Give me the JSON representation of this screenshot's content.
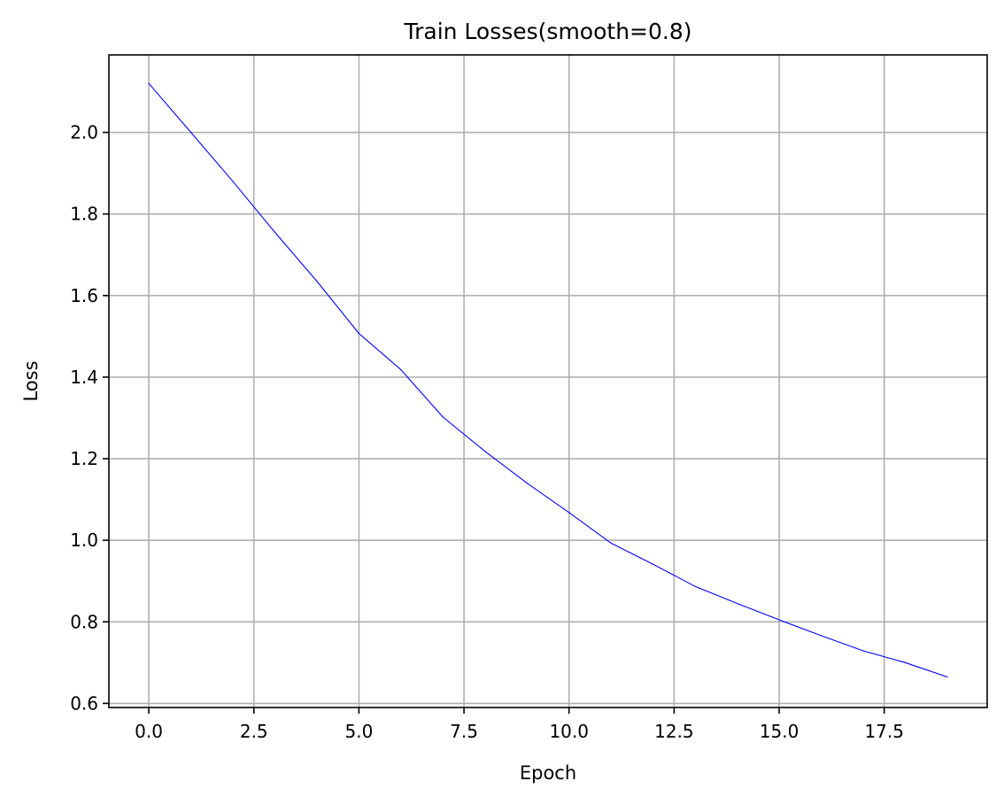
{
  "chart_data": {
    "type": "line",
    "title": "Train Losses(smooth=0.8)",
    "xlabel": "Epoch",
    "ylabel": "Loss",
    "xlim": [
      -0.95,
      19.95
    ],
    "ylim": [
      0.59,
      2.19
    ],
    "xticks": [
      0.0,
      2.5,
      5.0,
      7.5,
      10.0,
      12.5,
      15.0,
      17.5
    ],
    "xtick_labels": [
      "0.0",
      "2.5",
      "5.0",
      "7.5",
      "10.0",
      "12.5",
      "15.0",
      "17.5"
    ],
    "yticks": [
      0.6,
      0.8,
      1.0,
      1.2,
      1.4,
      1.6,
      1.8,
      2.0
    ],
    "ytick_labels": [
      "0.6",
      "0.8",
      "1.0",
      "1.2",
      "1.4",
      "1.6",
      "1.8",
      "2.0"
    ],
    "grid": true,
    "series": [
      {
        "color": "#0000ff",
        "x": [
          0,
          1,
          2,
          3,
          4,
          5,
          6,
          7,
          8,
          9,
          10,
          11,
          12,
          13,
          14,
          15,
          16,
          17,
          18,
          19
        ],
        "y": [
          2.12,
          2.0,
          1.88,
          1.755,
          1.635,
          1.507,
          1.418,
          1.302,
          1.218,
          1.14,
          1.068,
          0.993,
          0.941,
          0.887,
          0.845,
          0.805,
          0.766,
          0.729,
          0.7,
          0.665
        ]
      }
    ]
  }
}
